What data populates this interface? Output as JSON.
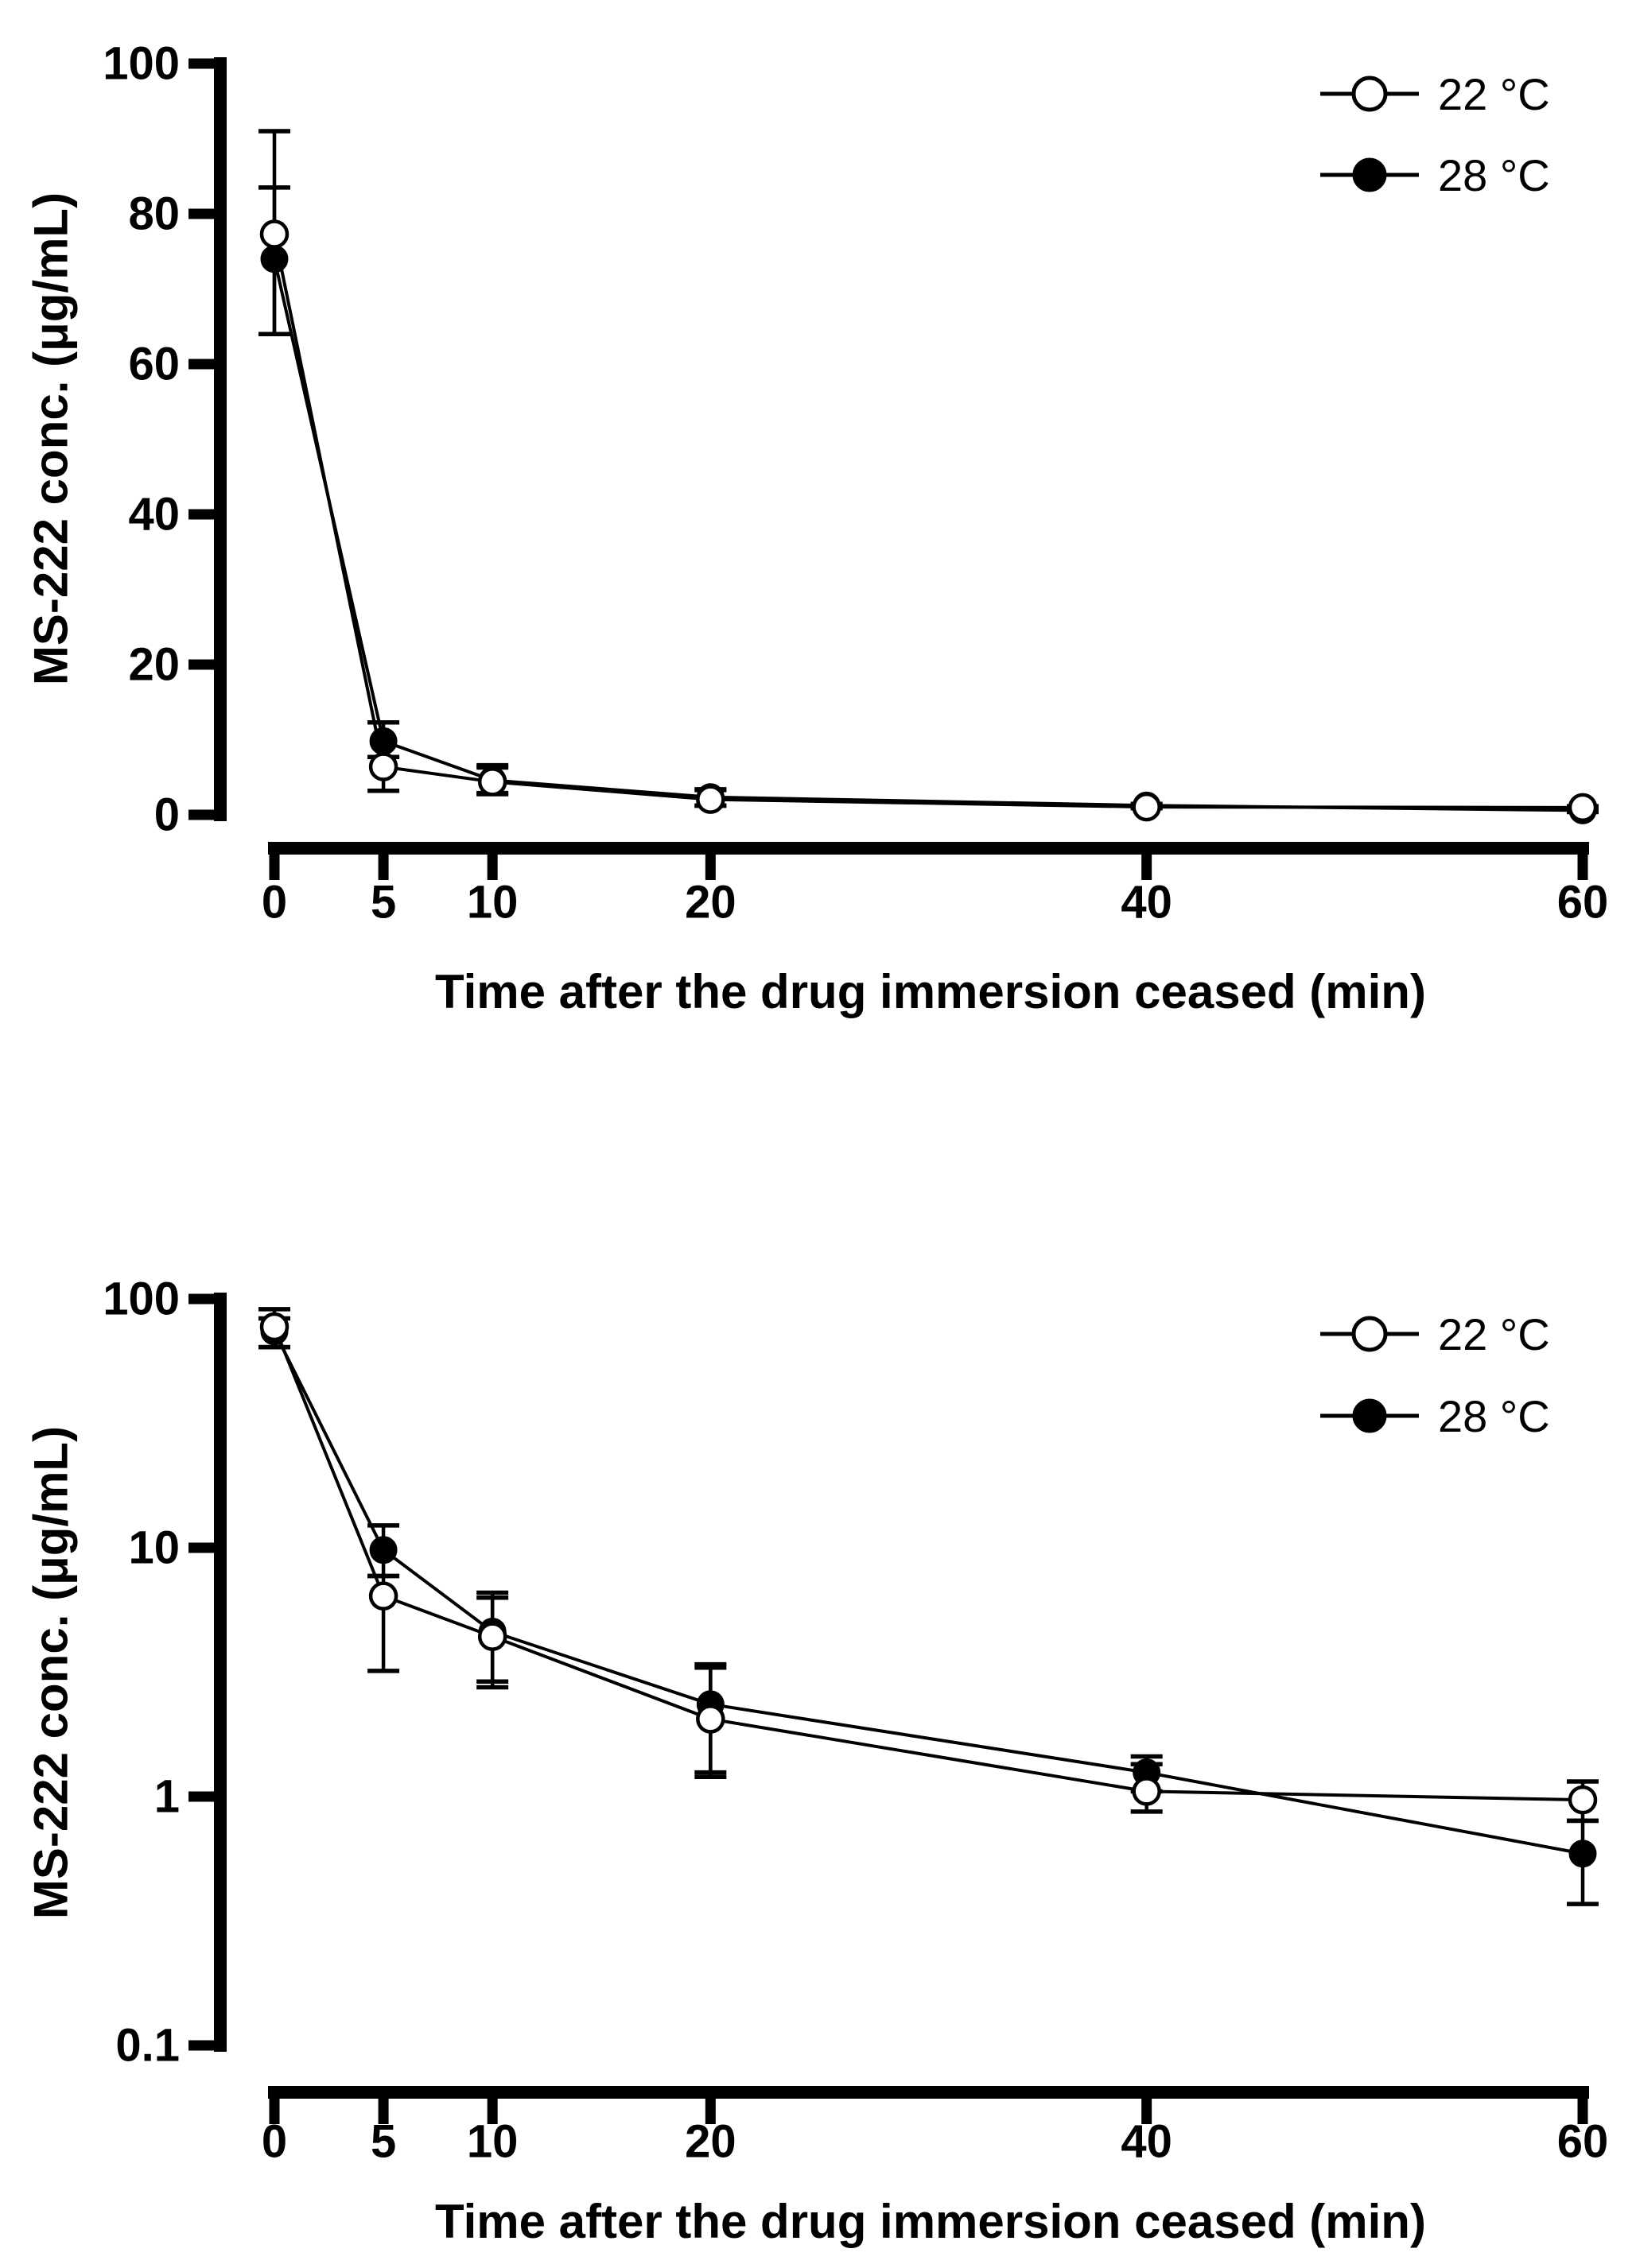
{
  "figure": {
    "background_color": "#ffffff",
    "ink_color": "#000000",
    "panel_count": 2,
    "x_axis_title": "Time after the drug immersion ceased (min)",
    "y_axis_title": "MS-222 conc. (μg/mL)"
  },
  "chart_data": [
    {
      "type": "line",
      "panel": "top-linear",
      "title": "",
      "xlabel": "Time after the drug immersion ceased (min)",
      "ylabel": "MS-222 conc. (μg/mL)",
      "y_scale": "linear",
      "ylim": [
        0,
        100
      ],
      "xlim": [
        0,
        60
      ],
      "grid": false,
      "legend_position": "top-right",
      "x": [
        0,
        5,
        10,
        20,
        40,
        60
      ],
      "x_tick_labels": [
        "0",
        "5",
        "10",
        "20",
        "40",
        "60"
      ],
      "y_ticks": [
        0,
        20,
        40,
        60,
        80,
        100
      ],
      "y_tick_labels": [
        "0",
        "20",
        "40",
        "60",
        "80",
        "100"
      ],
      "series": [
        {
          "name": "22 °C",
          "marker": "open-circle",
          "values": [
            77.3,
            6.4,
            4.4,
            2.05,
            1.05,
            0.97
          ],
          "err_lo": [
            64,
            3.2,
            2.75,
            1.2,
            0.87,
            0.8
          ],
          "err_hi": [
            91,
            7.7,
            6.6,
            3.3,
            1.35,
            1.15
          ]
        },
        {
          "name": "28 °C",
          "marker": "filled-circle",
          "values": [
            74,
            9.8,
            4.6,
            2.35,
            1.25,
            0.59
          ],
          "err_lo": [
            64,
            7.7,
            2.9,
            1.25,
            1.05,
            0.37
          ],
          "err_hi": [
            83.5,
            12.3,
            6.3,
            3.4,
            1.45,
            0.8
          ]
        }
      ]
    },
    {
      "type": "line",
      "panel": "bottom-log",
      "title": "",
      "xlabel": "Time after the drug immersion ceased (min)",
      "ylabel": "MS-222 conc. (μg/mL)",
      "y_scale": "log",
      "ylim": [
        0.1,
        100
      ],
      "xlim": [
        0,
        60
      ],
      "grid": false,
      "legend_position": "top-right",
      "x": [
        0,
        5,
        10,
        20,
        40,
        60
      ],
      "x_tick_labels": [
        "0",
        "5",
        "10",
        "20",
        "40",
        "60"
      ],
      "y_ticks": [
        0.1,
        1,
        10,
        100
      ],
      "y_tick_labels": [
        "0.1",
        "1",
        "10",
        "100"
      ],
      "series": [
        {
          "name": "22 °C",
          "marker": "open-circle",
          "values": [
            77.3,
            6.4,
            4.4,
            2.05,
            1.05,
            0.97
          ],
          "err_lo": [
            64,
            3.2,
            2.75,
            1.2,
            0.87,
            0.8
          ],
          "err_hi": [
            91,
            7.7,
            6.6,
            3.3,
            1.35,
            1.15
          ]
        },
        {
          "name": "28 °C",
          "marker": "filled-circle",
          "values": [
            74,
            9.8,
            4.6,
            2.35,
            1.25,
            0.59
          ],
          "err_lo": [
            64,
            7.7,
            2.9,
            1.25,
            1.05,
            0.37
          ],
          "err_hi": [
            83.5,
            12.3,
            6.3,
            3.4,
            1.45,
            0.8
          ]
        }
      ]
    }
  ]
}
